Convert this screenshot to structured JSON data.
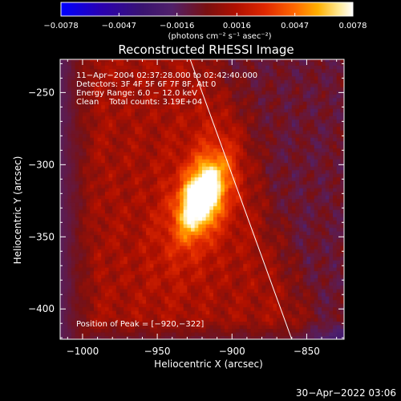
{
  "chart_data": {
    "type": "heatmap",
    "title": "Reconstructed RHESSI Image",
    "xlabel": "Heliocentric X (arcsec)",
    "ylabel": "Heliocentric Y (arcsec)",
    "xlim": [
      -1015,
      -825
    ],
    "ylim": [
      -421,
      -227
    ],
    "x_ticks": [
      -1000,
      -950,
      -900,
      -850
    ],
    "x_tick_labels": [
      "−1000",
      "−950",
      "−900",
      "−850"
    ],
    "y_ticks": [
      -250,
      -300,
      -350,
      -400
    ],
    "y_tick_labels": [
      "−250",
      "−300",
      "−350",
      "−400"
    ],
    "colorbar": {
      "min": -0.0078,
      "max": 0.0078,
      "ticks": [
        -0.0078,
        -0.0047,
        -0.0016,
        0.0016,
        0.0047,
        0.0078
      ],
      "tick_labels": [
        "−0.0078",
        "−0.0047",
        "−0.0016",
        "0.0016",
        "0.0047",
        "0.0078"
      ],
      "unit_label": "(photons cm⁻² s⁻¹ asec⁻²)"
    },
    "annotations": [
      "11−Apr−2004 02:37:28.000 to 02:42:40.000",
      "Detectors: 3F 4F 5F 6F 7F 8F, Att 0",
      "Energy Range: 6.0 − 12.0 keV",
      "Clean    Total counts: 3.19E+04"
    ],
    "peak_label": "Position of Peak = [−920,−322]",
    "peak": {
      "x": -920,
      "y": -322
    },
    "limb_line": [
      [
        -928,
        -227
      ],
      [
        -860,
        -421
      ]
    ],
    "grid": false,
    "colors": {
      "background": "#000000",
      "axes": "#ffffff",
      "limb": "#ffffff",
      "colormap": [
        "#0000ff",
        "#2a00b0",
        "#3a1470",
        "#50206a",
        "#7a1010",
        "#b01000",
        "#e02800",
        "#ff6800",
        "#ffb000",
        "#ffe890",
        "#ffffff"
      ]
    }
  },
  "footer": {
    "timestamp": "30−Apr−2022 03:06"
  }
}
